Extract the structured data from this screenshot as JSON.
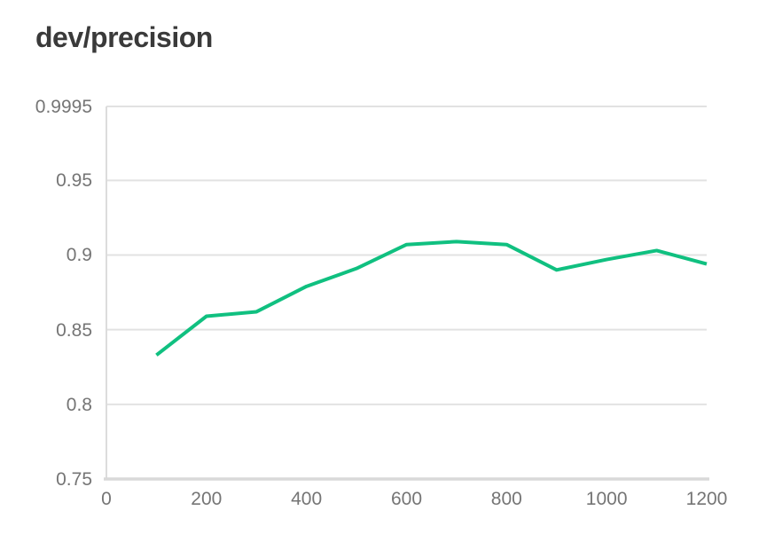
{
  "header": {
    "title": "dev/precision"
  },
  "colors": {
    "background": "#ffffff",
    "title_text": "#3a3a3a",
    "tick_text": "#757575",
    "gridline": "#e2e2e2",
    "axis_line_bottom": "#d9d9d9",
    "axis_line_left": "#dcdcdc",
    "series_line": "#10c080"
  },
  "chart_data": {
    "type": "line",
    "title": "dev/precision",
    "xlabel": "",
    "ylabel": "",
    "x": [
      100,
      200,
      300,
      400,
      500,
      600,
      700,
      800,
      900,
      1000,
      1100,
      1200
    ],
    "series": [
      {
        "name": "dev/precision",
        "color": "#10c080",
        "values": [
          0.833,
          0.859,
          0.862,
          0.879,
          0.891,
          0.907,
          0.909,
          0.907,
          0.89,
          0.897,
          0.903,
          0.894
        ]
      }
    ],
    "xlim": [
      0,
      1200
    ],
    "ylim": [
      0.75,
      0.9995
    ],
    "x_ticks": [
      0,
      200,
      400,
      600,
      800,
      1000,
      1200
    ],
    "x_tick_labels": [
      "0",
      "200",
      "400",
      "600",
      "800",
      "1000",
      "1200"
    ],
    "y_ticks": [
      0.75,
      0.8,
      0.85,
      0.9,
      0.95,
      0.9995
    ],
    "y_tick_labels": [
      "0.75",
      "0.8",
      "0.85",
      "0.9",
      "0.95",
      "0.9995"
    ],
    "grid": true,
    "legend_position": "none"
  }
}
